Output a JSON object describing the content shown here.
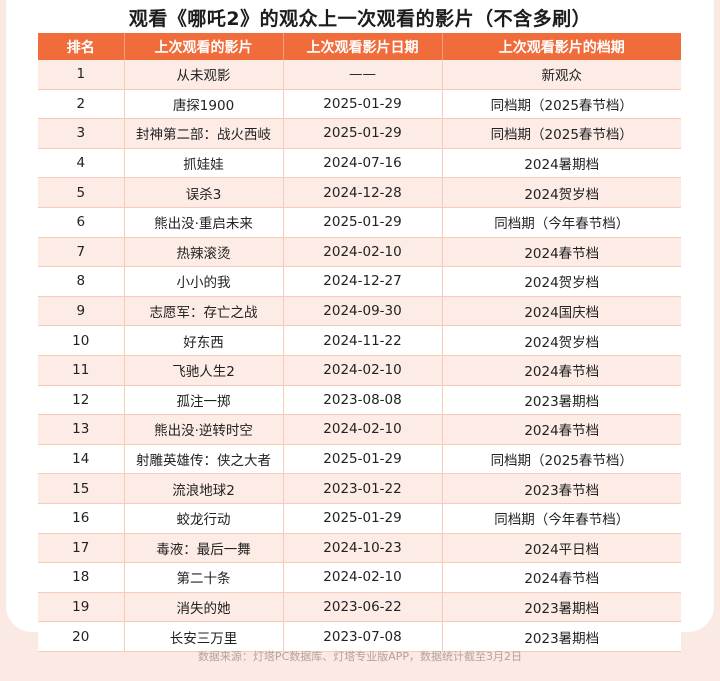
{
  "title": "观看《哪吒2》的观众上一次观看的影片（不含多刷）",
  "headers": [
    "排名",
    "上次观看的影片",
    "上次观看影片日期",
    "上次观看影片的档期"
  ],
  "rows": [
    [
      "1",
      "从未观影",
      "——",
      "新观众"
    ],
    [
      "2",
      "唐探1900",
      "2025-01-29",
      "同档期（2025春节档）"
    ],
    [
      "3",
      "封神第二部：战火西岐",
      "2025-01-29",
      "同档期（2025春节档）"
    ],
    [
      "4",
      "抓娃娃",
      "2024-07-16",
      "2024暑期档"
    ],
    [
      "5",
      "误杀3",
      "2024-12-28",
      "2024贺岁档"
    ],
    [
      "6",
      "熊出没·重启未来",
      "2025-01-29",
      "同档期（今年春节档）"
    ],
    [
      "7",
      "热辣滚烫",
      "2024-02-10",
      "2024春节档"
    ],
    [
      "8",
      "小小的我",
      "2024-12-27",
      "2024贺岁档"
    ],
    [
      "9",
      "志愿军：存亡之战",
      "2024-09-30",
      "2024国庆档"
    ],
    [
      "10",
      "好东西",
      "2024-11-22",
      "2024贺岁档"
    ],
    [
      "11",
      "飞驰人生2",
      "2024-02-10",
      "2024春节档"
    ],
    [
      "12",
      "孤注一掷",
      "2023-08-08",
      "2023暑期档"
    ],
    [
      "13",
      "熊出没·逆转时空",
      "2024-02-10",
      "2024春节档"
    ],
    [
      "14",
      "射雕英雄传：侠之大者",
      "2025-01-29",
      "同档期（2025春节档）"
    ],
    [
      "15",
      "流浪地球2",
      "2023-01-22",
      "2023春节档"
    ],
    [
      "16",
      "蛟龙行动",
      "2025-01-29",
      "同档期（今年春节档）"
    ],
    [
      "17",
      "毒液：最后一舞",
      "2024-10-23",
      "2024平日档"
    ],
    [
      "18",
      "第二十条",
      "2024-02-10",
      "2024春节档"
    ],
    [
      "19",
      "消失的她",
      "2023-06-22",
      "2023暑期档"
    ],
    [
      "20",
      "长安三万里",
      "2023-07-08",
      "2023暑期档"
    ]
  ],
  "footer": "数据来源：灯塔PC数据库、灯塔专业版APP，数据统计截至3月2日"
}
